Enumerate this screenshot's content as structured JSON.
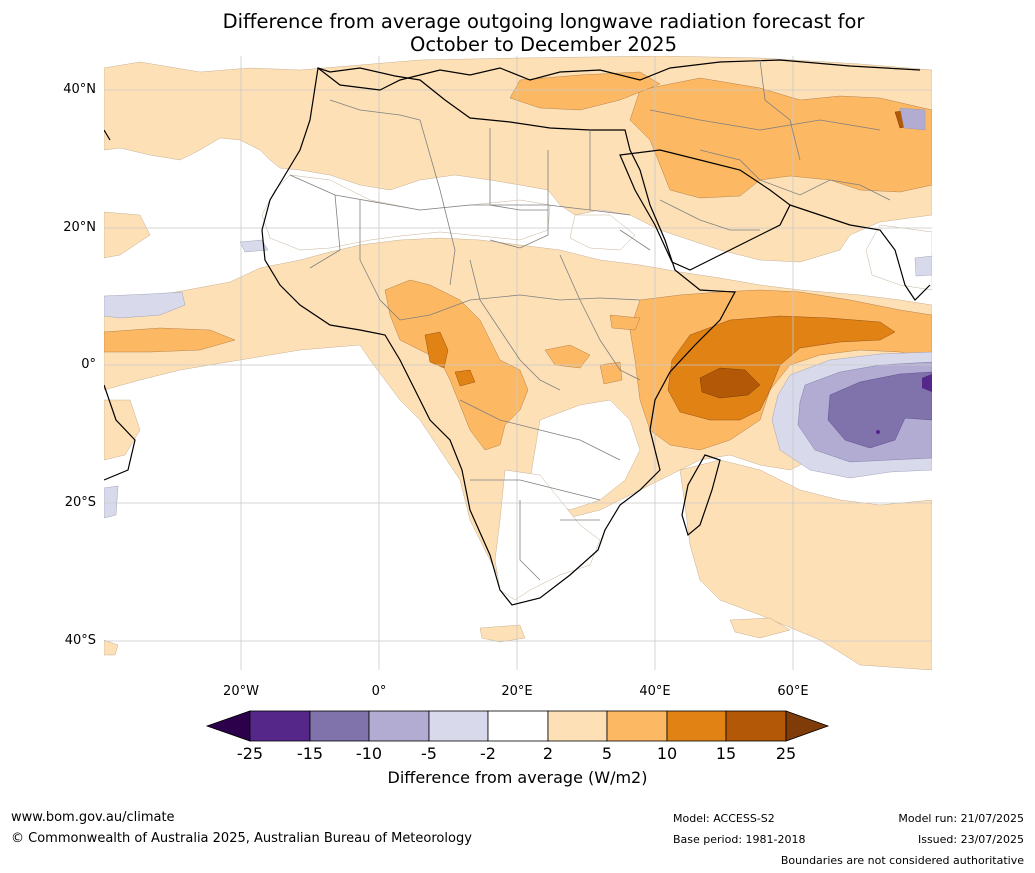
{
  "title_line1": "Difference from average outgoing longwave radiation forecast for",
  "title_line2": "October to December 2025",
  "lat_labels": [
    "40°N",
    "20°N",
    "0°",
    "20°S",
    "40°S"
  ],
  "lon_labels": [
    "20°W",
    "0°",
    "20°E",
    "40°E",
    "60°E"
  ],
  "colorbar": {
    "title": "Difference from average (W/m2)",
    "ticks": [
      "-25",
      "-15",
      "-10",
      "-5",
      "-2",
      "2",
      "5",
      "10",
      "15",
      "25"
    ],
    "colors": {
      "under": "#2d004b",
      "neg25_15": "#542788",
      "neg15_10": "#8073ac",
      "neg10_5": "#b2abd2",
      "neg5_2": "#d8daeb",
      "neg2_2": "#ffffff",
      "pos2_5": "#fee0b6",
      "pos5_10": "#fdb863",
      "pos10_15": "#e08214",
      "pos15_25": "#b35806",
      "over": "#7f3b08"
    }
  },
  "footer": {
    "url": "www.bom.gov.au/climate",
    "copyright": "© Commonwealth of Australia 2025, Australian Bureau of Meteorology",
    "model": "Model: ACCESS-S2",
    "base_period": "Base period: 1981-2018",
    "model_run": "Model run: 21/07/2025",
    "issued": "Issued: 23/07/2025",
    "disclaimer": "Boundaries are not considered authoritative"
  }
}
